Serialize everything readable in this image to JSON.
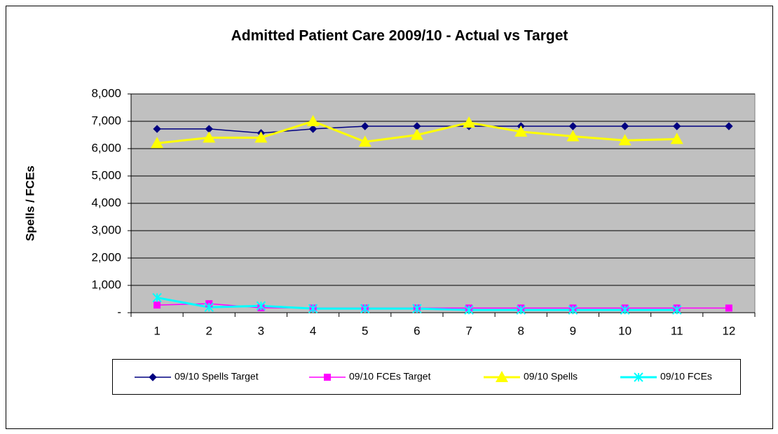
{
  "chart_data": {
    "type": "line",
    "title": "Admitted Patient Care 2009/10 - Actual vs Target",
    "y_label": "Spells / FCEs",
    "categories": [
      "1",
      "2",
      "3",
      "4",
      "5",
      "6",
      "7",
      "8",
      "9",
      "10",
      "11",
      "12"
    ],
    "series": [
      {
        "name": "09/10 Spells Target",
        "color": "#000080",
        "marker": "diamond",
        "values": [
          6720,
          6720,
          6570,
          6720,
          6820,
          6820,
          6820,
          6820,
          6820,
          6820,
          6820,
          6820
        ]
      },
      {
        "name": "09/10 FCEs Target",
        "color": "#ff00ff",
        "marker": "square",
        "values": [
          280,
          330,
          180,
          170,
          170,
          170,
          170,
          170,
          170,
          170,
          170,
          170
        ]
      },
      {
        "name": "09/10 Spells",
        "color": "#ffff00",
        "marker": "triangle",
        "values": [
          6200,
          6400,
          6400,
          7000,
          6250,
          6500,
          6950,
          6620,
          6450,
          6300,
          6350,
          null
        ]
      },
      {
        "name": "09/10 FCEs",
        "color": "#00ffff",
        "marker": "x",
        "values": [
          550,
          200,
          250,
          150,
          150,
          150,
          100,
          100,
          100,
          100,
          100,
          null
        ]
      }
    ],
    "ylim": [
      0,
      8000
    ],
    "yticks": [
      {
        "value": 0,
        "label": "-"
      },
      {
        "value": 1000,
        "label": "1,000"
      },
      {
        "value": 2000,
        "label": "2,000"
      },
      {
        "value": 3000,
        "label": "3,000"
      },
      {
        "value": 4000,
        "label": "4,000"
      },
      {
        "value": 5000,
        "label": "5,000"
      },
      {
        "value": 6000,
        "label": "6,000"
      },
      {
        "value": 7000,
        "label": "7,000"
      },
      {
        "value": 8000,
        "label": "8,000"
      }
    ],
    "grid": true,
    "plot_background": "#c0c0c0",
    "legend": "bottom"
  }
}
